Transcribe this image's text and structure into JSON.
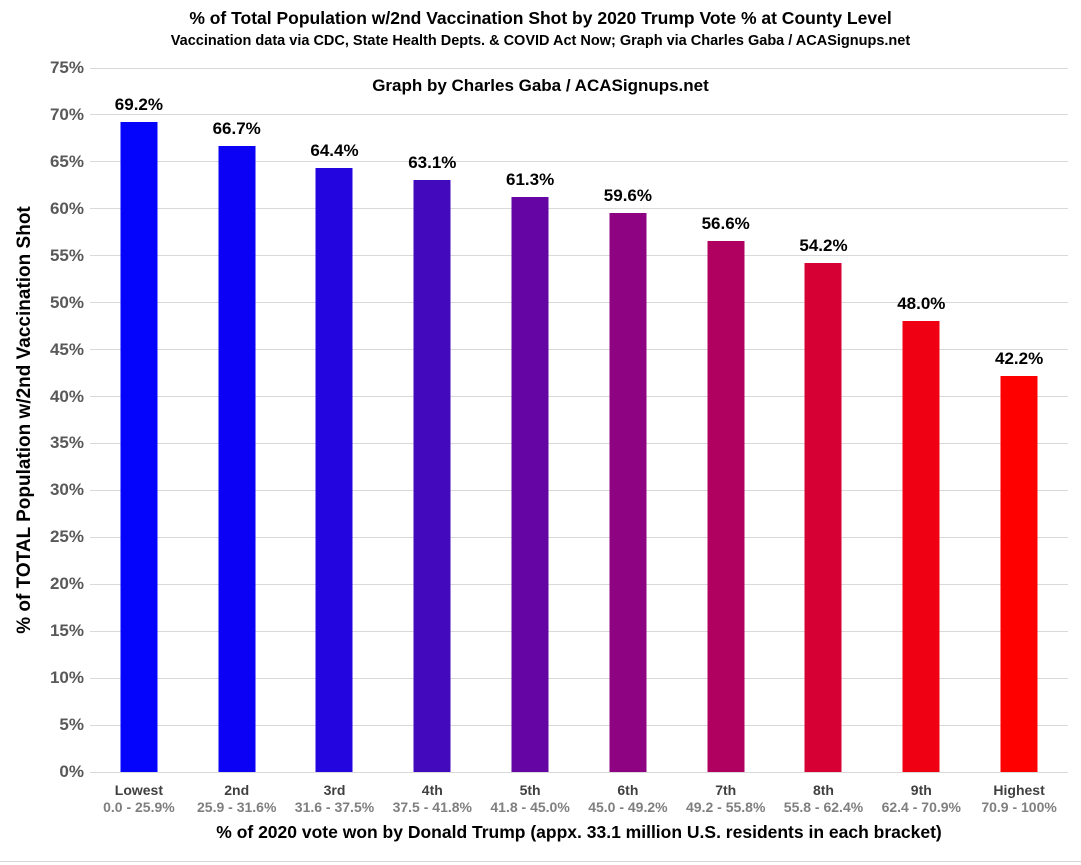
{
  "chart_data": {
    "type": "bar",
    "title": "% of Total Population w/2nd Vaccination Shot by 2020 Trump Vote % at County Level",
    "subtitle": "Vaccination data via CDC, State Health Depts. & COVID Act Now; Graph via Charles Gaba / ACASignups.net",
    "watermark": "Graph by Charles Gaba / ACASignups.net",
    "xlabel": "% of 2020 vote won by Donald Trump (appx. 33.1 million U.S. residents in each bracket)",
    "ylabel": "% of TOTAL Population w/2nd Vaccination Shot",
    "categories": [
      {
        "tier": "Lowest",
        "range": "0.0 - 25.9%"
      },
      {
        "tier": "2nd",
        "range": "25.9 - 31.6%"
      },
      {
        "tier": "3rd",
        "range": "31.6 - 37.5%"
      },
      {
        "tier": "4th",
        "range": "37.5 - 41.8%"
      },
      {
        "tier": "5th",
        "range": "41.8 - 45.0%"
      },
      {
        "tier": "6th",
        "range": "45.0 - 49.2%"
      },
      {
        "tier": "7th",
        "range": "49.2 - 55.8%"
      },
      {
        "tier": "8th",
        "range": "55.8 - 62.4%"
      },
      {
        "tier": "9th",
        "range": "62.4 - 70.9%"
      },
      {
        "tier": "Highest",
        "range": "70.9 - 100%"
      }
    ],
    "values": [
      69.2,
      66.7,
      64.4,
      63.1,
      61.3,
      59.6,
      56.6,
      54.2,
      48.0,
      42.2
    ],
    "value_labels": [
      "69.2%",
      "66.7%",
      "64.4%",
      "63.1%",
      "61.3%",
      "59.6%",
      "56.6%",
      "54.2%",
      "48.0%",
      "42.2%"
    ],
    "bar_colors": [
      "#0403FC",
      "#0B01F4",
      "#2305DF",
      "#4209BD",
      "#6506A4",
      "#8E0382",
      "#B00160",
      "#D60035",
      "#EF0012",
      "#FE0000"
    ],
    "ylim": [
      0,
      75
    ],
    "ytick_step": 5,
    "ytick_labels": [
      "0%",
      "5%",
      "10%",
      "15%",
      "20%",
      "25%",
      "30%",
      "35%",
      "40%",
      "45%",
      "50%",
      "55%",
      "60%",
      "65%",
      "70%",
      "75%"
    ],
    "grid": true,
    "gridline_color": "#d9d9d9",
    "legend": false,
    "background_color": "#ffffff",
    "text_colors": {
      "title": "#000000",
      "y_ticks": "#595959",
      "x_tier": "#404040",
      "x_range": "#7f7f7f"
    }
  }
}
